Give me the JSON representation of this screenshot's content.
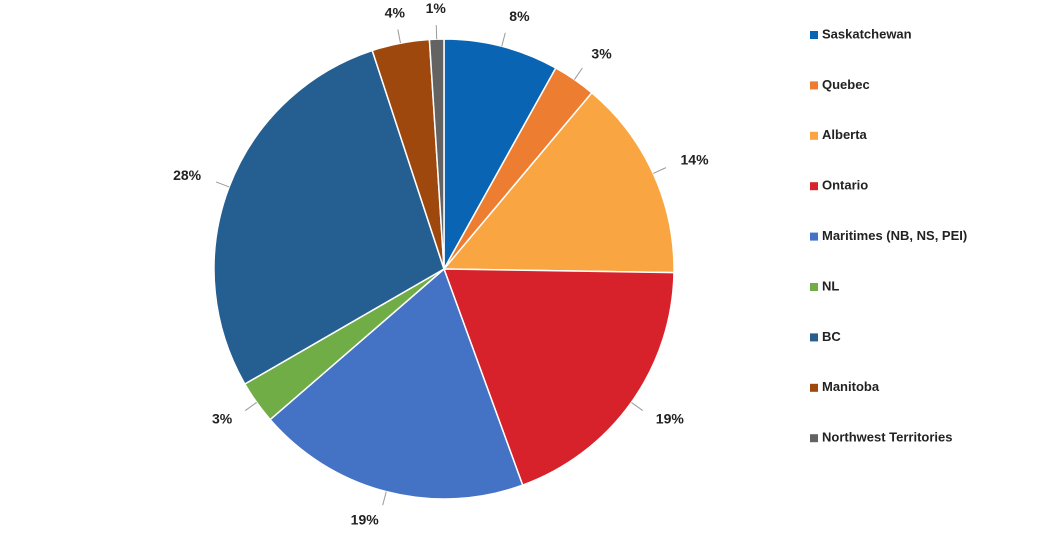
{
  "chart_data": {
    "type": "pie",
    "categories": [
      "Saskatchewan",
      "Quebec",
      "Alberta",
      "Ontario",
      "Maritimes (NB, NS, PEI)",
      "NL",
      "BC",
      "Manitoba",
      "Northwest Territories"
    ],
    "values": [
      8,
      3,
      14,
      19,
      19,
      3,
      28,
      4,
      1
    ],
    "value_labels": [
      "8%",
      "3%",
      "14%",
      "19%",
      "19%",
      "3%",
      "28%",
      "4%",
      "1%"
    ],
    "colors": [
      "#0a64b4",
      "#ed7d31",
      "#f9a541",
      "#d7212b",
      "#4472c4",
      "#70ad47",
      "#255e91",
      "#9e480e",
      "#636363"
    ],
    "legend": "right"
  }
}
